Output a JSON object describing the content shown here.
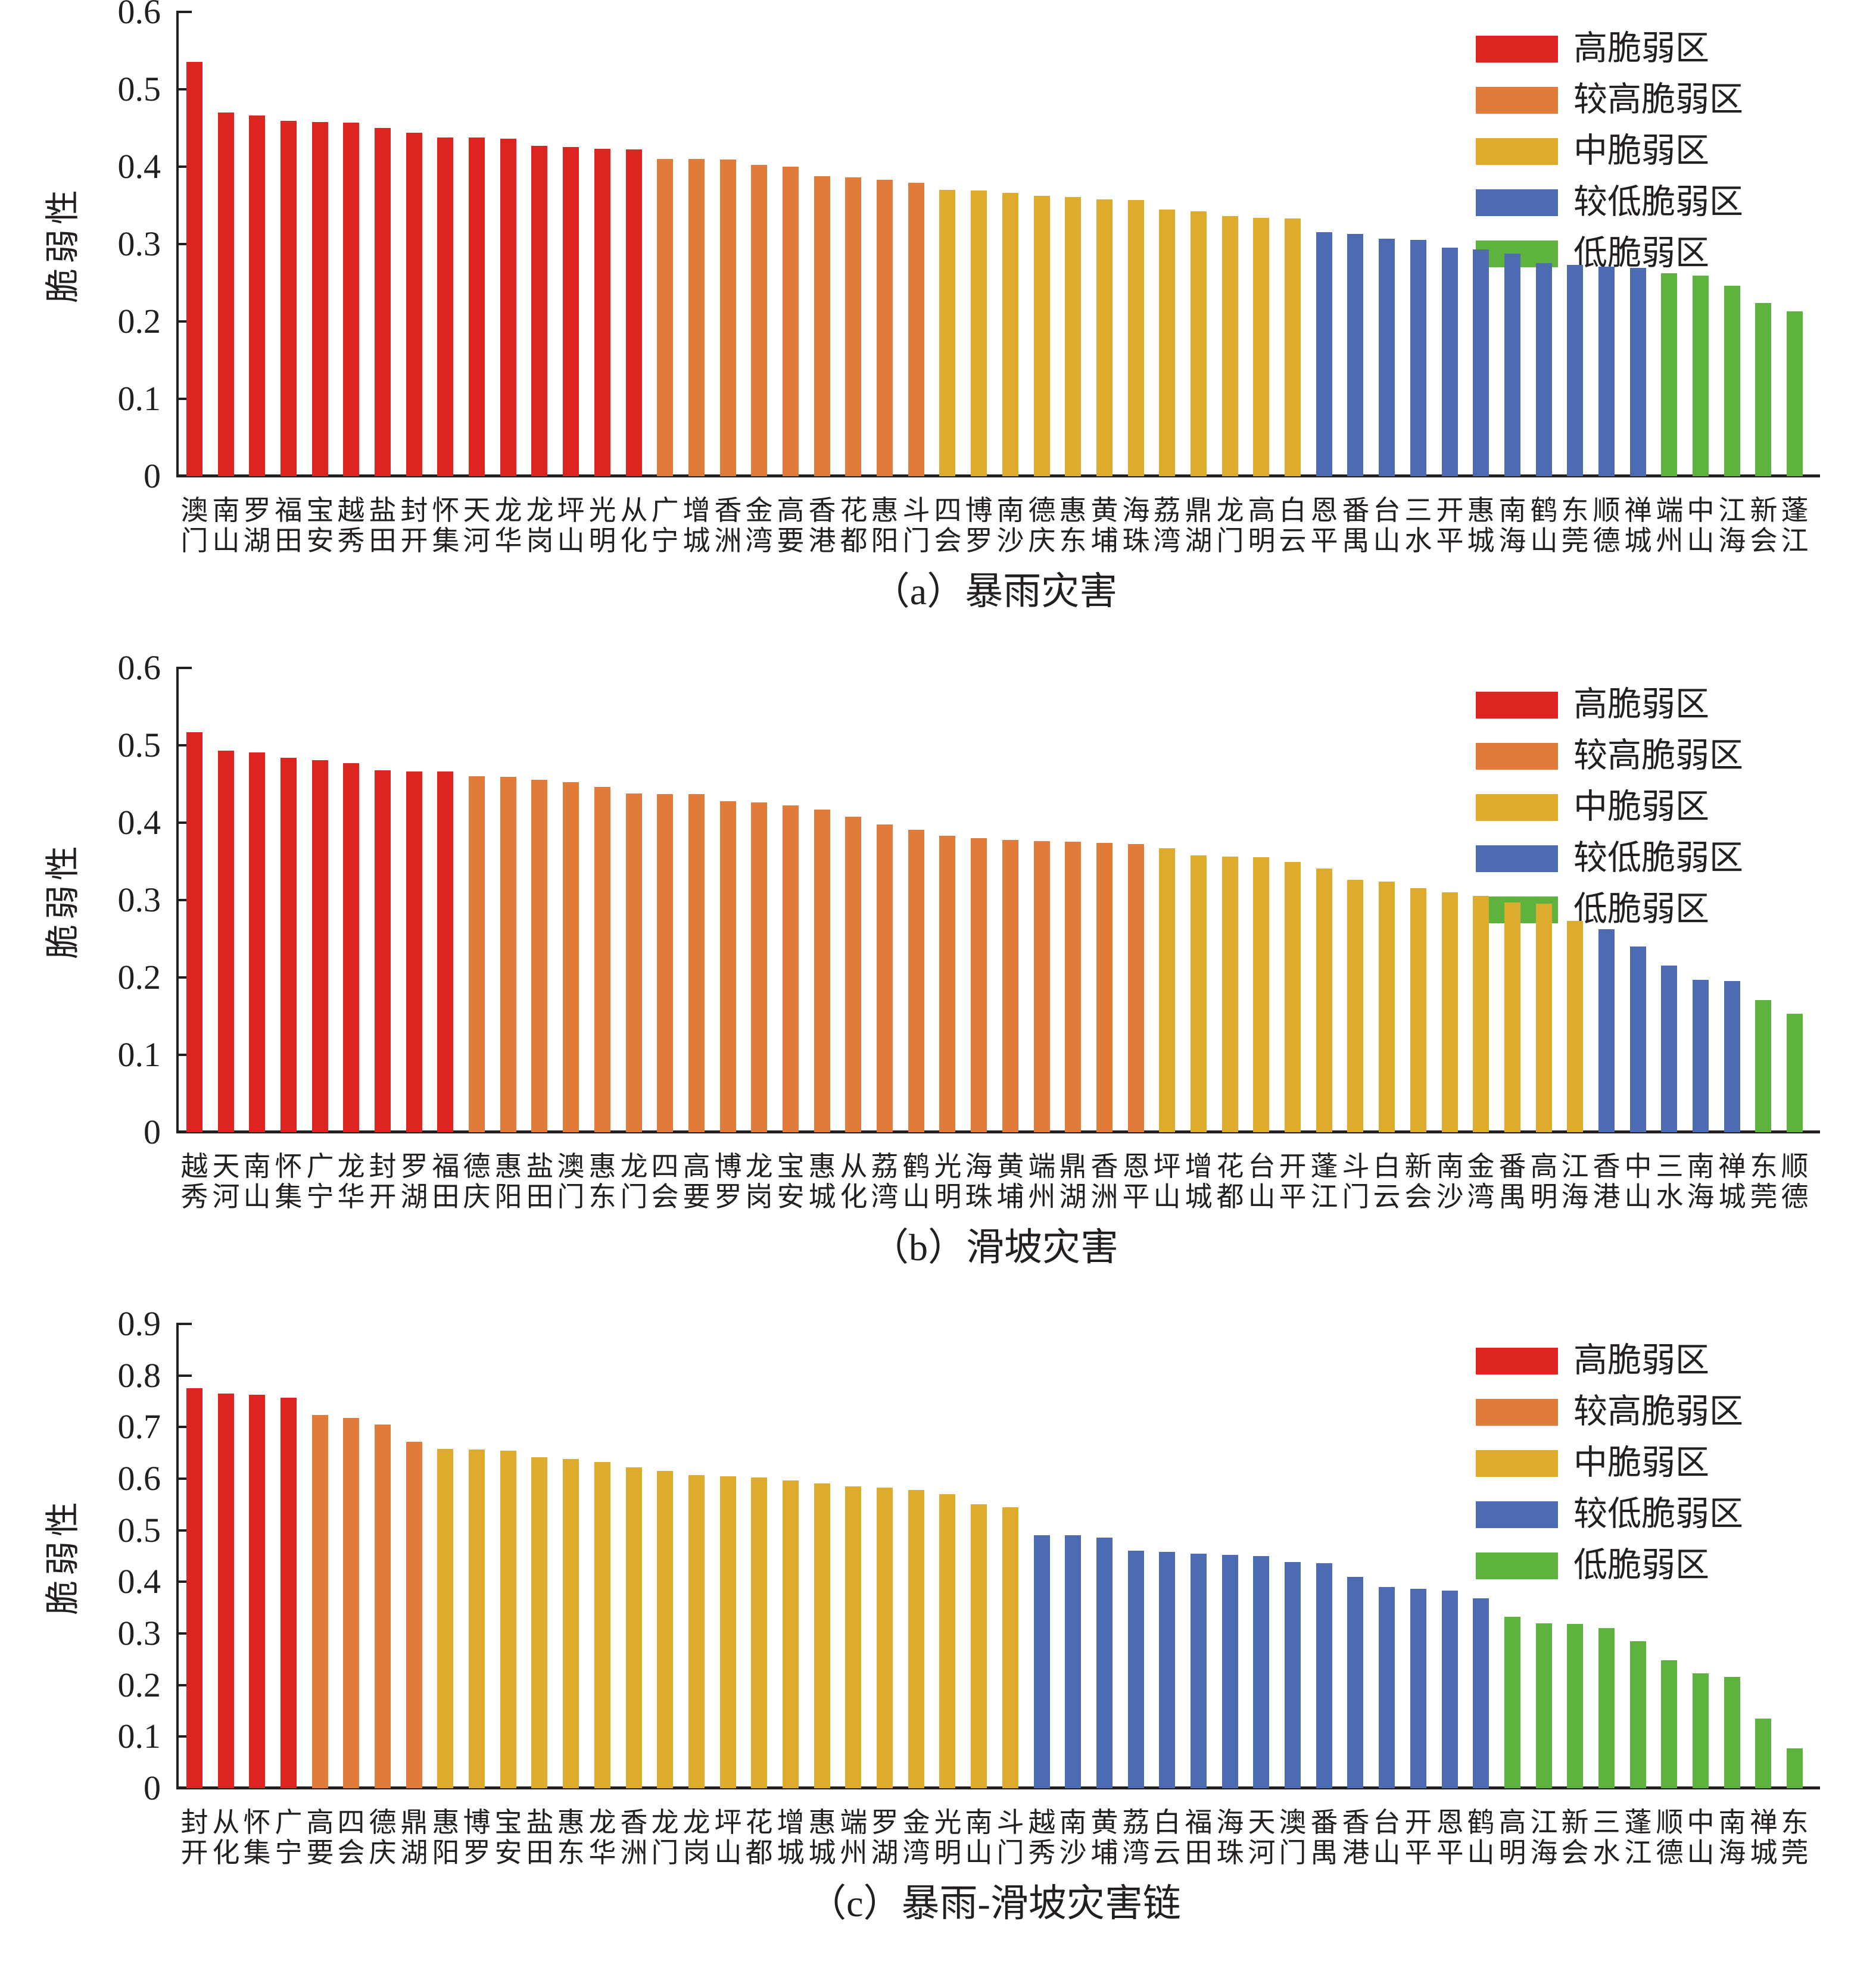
{
  "page": {
    "background": "#ffffff"
  },
  "colors": {
    "H": "#dd2420",
    "MH": "#e07b3a",
    "M": "#ddab2d",
    "ML": "#4c6bb3",
    "L": "#5db33d",
    "axis": "#231f20"
  },
  "legend": {
    "items": [
      {
        "label": "高脆弱区",
        "level": "H"
      },
      {
        "label": "较高脆弱区",
        "level": "MH"
      },
      {
        "label": "中脆弱区",
        "level": "M"
      },
      {
        "label": "较低脆弱区",
        "level": "ML"
      },
      {
        "label": "低脆弱区",
        "level": "L"
      }
    ]
  },
  "chart_data": [
    {
      "type": "bar",
      "title": "（a）暴雨灾害",
      "ylabel": "脆弱性",
      "ylim": [
        0,
        0.6
      ],
      "ytick_labels": [
        "0",
        "0.1",
        "0.2",
        "0.3",
        "0.4",
        "0.5",
        "0.6"
      ],
      "grid": false,
      "legend_position": "top-right",
      "categories": [
        "澳门",
        "南山",
        "罗湖",
        "福田",
        "宝安",
        "越秀",
        "盐田",
        "封开",
        "怀集",
        "天河",
        "龙华",
        "龙岗",
        "坪山",
        "光明",
        "从化",
        "广宁",
        "增城",
        "香洲",
        "金湾",
        "高要",
        "香港",
        "花都",
        "惠阳",
        "斗门",
        "四会",
        "博罗",
        "南沙",
        "德庆",
        "惠东",
        "黄埔",
        "海珠",
        "荔湾",
        "鼎湖",
        "龙门",
        "高明",
        "白云",
        "恩平",
        "番禺",
        "台山",
        "三水",
        "开平",
        "惠城",
        "南海",
        "鹤山",
        "东莞",
        "顺德",
        "禅城",
        "端州",
        "中山",
        "江海",
        "新会",
        "蓬江"
      ],
      "values": [
        0.535,
        0.47,
        0.466,
        0.459,
        0.458,
        0.457,
        0.45,
        0.444,
        0.438,
        0.438,
        0.436,
        0.427,
        0.425,
        0.423,
        0.422,
        0.41,
        0.41,
        0.409,
        0.402,
        0.4,
        0.388,
        0.386,
        0.383,
        0.379,
        0.37,
        0.369,
        0.366,
        0.362,
        0.361,
        0.358,
        0.357,
        0.345,
        0.342,
        0.336,
        0.334,
        0.333,
        0.315,
        0.313,
        0.307,
        0.305,
        0.295,
        0.293,
        0.288,
        0.275,
        0.273,
        0.271,
        0.269,
        0.262,
        0.259,
        0.246,
        0.224,
        0.213
      ],
      "levels": [
        "H",
        "H",
        "H",
        "H",
        "H",
        "H",
        "H",
        "H",
        "H",
        "H",
        "H",
        "H",
        "H",
        "H",
        "H",
        "MH",
        "MH",
        "MH",
        "MH",
        "MH",
        "MH",
        "MH",
        "MH",
        "MH",
        "M",
        "M",
        "M",
        "M",
        "M",
        "M",
        "M",
        "M",
        "M",
        "M",
        "M",
        "M",
        "ML",
        "ML",
        "ML",
        "ML",
        "ML",
        "ML",
        "ML",
        "ML",
        "ML",
        "ML",
        "ML",
        "L",
        "L",
        "L",
        "L",
        "L"
      ]
    },
    {
      "type": "bar",
      "title": "（b）滑坡灾害",
      "ylabel": "脆弱性",
      "ylim": [
        0,
        0.6
      ],
      "ytick_labels": [
        "0",
        "0.1",
        "0.2",
        "0.3",
        "0.4",
        "0.5",
        "0.6"
      ],
      "grid": false,
      "legend_position": "top-right",
      "categories": [
        "越秀",
        "天河",
        "南山",
        "怀集",
        "广宁",
        "龙华",
        "封开",
        "罗湖",
        "福田",
        "德庆",
        "惠阳",
        "盐田",
        "澳门",
        "惠东",
        "龙门",
        "四会",
        "高要",
        "博罗",
        "龙岗",
        "宝安",
        "惠城",
        "从化",
        "荔湾",
        "鹤山",
        "光明",
        "海珠",
        "黄埔",
        "端州",
        "鼎湖",
        "香洲",
        "恩平",
        "坪山",
        "增城",
        "花都",
        "台山",
        "开平",
        "蓬江",
        "斗门",
        "白云",
        "新会",
        "南沙",
        "金湾",
        "番禺",
        "高明",
        "江海",
        "香港",
        "中山",
        "三水",
        "南海",
        "禅城",
        "东莞",
        "顺德"
      ],
      "values": [
        0.517,
        0.493,
        0.491,
        0.484,
        0.481,
        0.477,
        0.468,
        0.466,
        0.466,
        0.46,
        0.459,
        0.455,
        0.452,
        0.446,
        0.438,
        0.437,
        0.437,
        0.428,
        0.426,
        0.422,
        0.417,
        0.408,
        0.398,
        0.391,
        0.383,
        0.38,
        0.378,
        0.376,
        0.375,
        0.374,
        0.372,
        0.367,
        0.358,
        0.356,
        0.355,
        0.349,
        0.341,
        0.326,
        0.324,
        0.315,
        0.31,
        0.305,
        0.297,
        0.295,
        0.273,
        0.262,
        0.24,
        0.215,
        0.197,
        0.195,
        0.171,
        0.153
      ],
      "levels": [
        "H",
        "H",
        "H",
        "H",
        "H",
        "H",
        "H",
        "H",
        "H",
        "MH",
        "MH",
        "MH",
        "MH",
        "MH",
        "MH",
        "MH",
        "MH",
        "MH",
        "MH",
        "MH",
        "MH",
        "MH",
        "MH",
        "MH",
        "MH",
        "MH",
        "MH",
        "MH",
        "MH",
        "MH",
        "MH",
        "M",
        "M",
        "M",
        "M",
        "M",
        "M",
        "M",
        "M",
        "M",
        "M",
        "M",
        "M",
        "M",
        "M",
        "ML",
        "ML",
        "ML",
        "ML",
        "ML",
        "L",
        "L"
      ]
    },
    {
      "type": "bar",
      "title": "（c）暴雨-滑坡灾害链",
      "ylabel": "脆弱性",
      "ylim": [
        0,
        0.9
      ],
      "ytick_labels": [
        "0",
        "0.1",
        "0.2",
        "0.3",
        "0.4",
        "0.5",
        "0.6",
        "0.7",
        "0.8",
        "0.9"
      ],
      "grid": false,
      "legend_position": "top-right",
      "categories": [
        "封开",
        "从化",
        "怀集",
        "广宁",
        "高要",
        "四会",
        "德庆",
        "鼎湖",
        "惠阳",
        "博罗",
        "宝安",
        "盐田",
        "惠东",
        "龙华",
        "香洲",
        "龙门",
        "龙岗",
        "坪山",
        "花都",
        "增城",
        "惠城",
        "端州",
        "罗湖",
        "金湾",
        "光明",
        "南山",
        "斗门",
        "越秀",
        "南沙",
        "黄埔",
        "荔湾",
        "白云",
        "福田",
        "海珠",
        "天河",
        "澳门",
        "番禺",
        "香港",
        "台山",
        "开平",
        "恩平",
        "鹤山",
        "高明",
        "江海",
        "新会",
        "三水",
        "蓬江",
        "顺德",
        "中山",
        "南海",
        "禅城",
        "东莞"
      ],
      "values": [
        0.775,
        0.765,
        0.763,
        0.757,
        0.723,
        0.718,
        0.705,
        0.672,
        0.658,
        0.657,
        0.654,
        0.641,
        0.638,
        0.632,
        0.622,
        0.615,
        0.607,
        0.605,
        0.602,
        0.596,
        0.591,
        0.585,
        0.583,
        0.578,
        0.57,
        0.55,
        0.545,
        0.49,
        0.49,
        0.486,
        0.46,
        0.458,
        0.455,
        0.452,
        0.45,
        0.438,
        0.436,
        0.41,
        0.39,
        0.387,
        0.383,
        0.368,
        0.332,
        0.32,
        0.319,
        0.31,
        0.285,
        0.248,
        0.223,
        0.216,
        0.135,
        0.077
      ],
      "levels": [
        "H",
        "H",
        "H",
        "H",
        "MH",
        "MH",
        "MH",
        "MH",
        "M",
        "M",
        "M",
        "M",
        "M",
        "M",
        "M",
        "M",
        "M",
        "M",
        "M",
        "M",
        "M",
        "M",
        "M",
        "M",
        "M",
        "M",
        "M",
        "ML",
        "ML",
        "ML",
        "ML",
        "ML",
        "ML",
        "ML",
        "ML",
        "ML",
        "ML",
        "ML",
        "ML",
        "ML",
        "ML",
        "ML",
        "L",
        "L",
        "L",
        "L",
        "L",
        "L",
        "L",
        "L",
        "L",
        "L"
      ]
    }
  ]
}
